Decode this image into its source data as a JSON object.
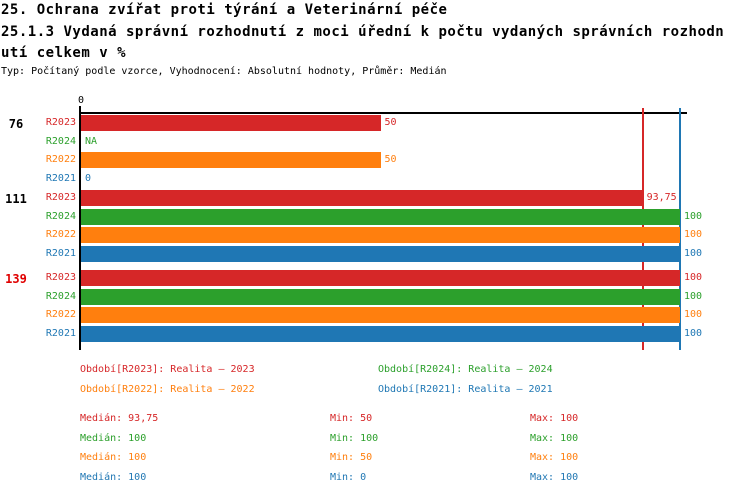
{
  "header": {
    "title_line1": "25. Ochrana zvířat proti týrání a Veterinární péče",
    "title_line2": "25.1.3 Vydaná správní rozhodnutí z moci úřední k počtu vydaných správních rozhodn",
    "title_line3": "utí celkem v %",
    "subtitle": "Typ: Počítaný podle vzorce, Vyhodnocení: Absolutní hodnoty, Průměr: Medián"
  },
  "chart_data": {
    "type": "bar",
    "orientation": "horizontal",
    "value_axis": {
      "min": 0,
      "max": 100,
      "tick_labels": [
        "0"
      ]
    },
    "grid": false,
    "series_colors": {
      "R2023": "#d62728",
      "R2024": "#2ca02c",
      "R2022": "#ff7f0e",
      "R2021": "#1f77b4"
    },
    "groups": [
      {
        "label": "76",
        "label_color": "#000000",
        "bars": [
          {
            "series": "R2023",
            "value": 50,
            "value_label": "50"
          },
          {
            "series": "R2024",
            "value": null,
            "value_label": "NA"
          },
          {
            "series": "R2022",
            "value": 50,
            "value_label": "50"
          },
          {
            "series": "R2021",
            "value": 0,
            "value_label": "0"
          }
        ]
      },
      {
        "label": "111",
        "label_color": "#000000",
        "bars": [
          {
            "series": "R2023",
            "value": 93.75,
            "value_label": "93,75"
          },
          {
            "series": "R2024",
            "value": 100,
            "value_label": "100"
          },
          {
            "series": "R2022",
            "value": 100,
            "value_label": "100"
          },
          {
            "series": "R2021",
            "value": 100,
            "value_label": "100"
          }
        ]
      },
      {
        "label": "139",
        "label_color": "#e00000",
        "bars": [
          {
            "series": "R2023",
            "value": 100,
            "value_label": "100"
          },
          {
            "series": "R2024",
            "value": 100,
            "value_label": "100"
          },
          {
            "series": "R2022",
            "value": 100,
            "value_label": "100"
          },
          {
            "series": "R2021",
            "value": 100,
            "value_label": "100"
          }
        ]
      }
    ],
    "reference_lines": [
      {
        "series": "R2023",
        "value": 93.75,
        "color": "#d62728"
      },
      {
        "series": "R2024",
        "value": 100,
        "color": "#2ca02c"
      },
      {
        "series": "R2022",
        "value": 100,
        "color": "#ff7f0e"
      },
      {
        "series": "R2021",
        "value": 100,
        "color": "#1f77b4"
      }
    ]
  },
  "legend": {
    "items": [
      {
        "series": "R2023",
        "label": "Období[R2023]: Realita – 2023",
        "color": "#d62728"
      },
      {
        "series": "R2024",
        "label": "Období[R2024]: Realita – 2024",
        "color": "#2ca02c"
      },
      {
        "series": "R2022",
        "label": "Období[R2022]: Realita – 2022",
        "color": "#ff7f0e"
      },
      {
        "series": "R2021",
        "label": "Období[R2021]: Realita – 2021",
        "color": "#1f77b4"
      }
    ]
  },
  "stats": {
    "rows": [
      {
        "series": "R2023",
        "color": "#d62728",
        "median": "Medián: 93,75",
        "min": "Min: 50",
        "max": "Max: 100"
      },
      {
        "series": "R2024",
        "color": "#2ca02c",
        "median": "Medián: 100",
        "min": "Min: 100",
        "max": "Max: 100"
      },
      {
        "series": "R2022",
        "color": "#ff7f0e",
        "median": "Medián: 100",
        "min": "Min: 50",
        "max": "Max: 100"
      },
      {
        "series": "R2021",
        "color": "#1f77b4",
        "median": "Medián: 100",
        "min": "Min: 0",
        "max": "Max: 100"
      }
    ]
  }
}
